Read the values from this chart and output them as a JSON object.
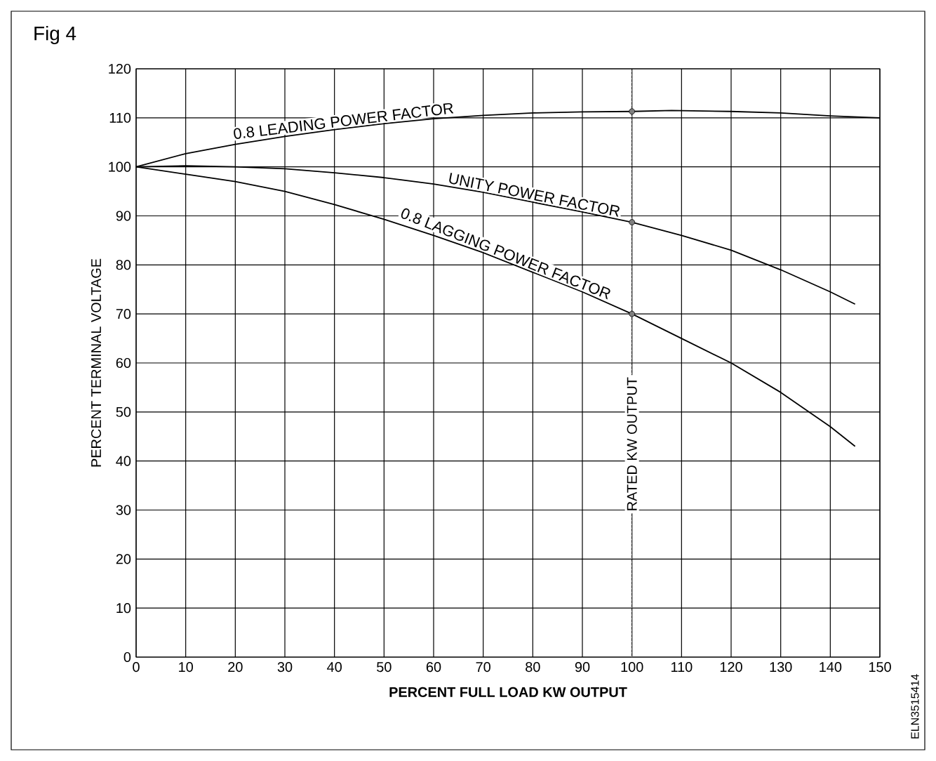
{
  "chart_data": {
    "type": "line",
    "title": "Fig 4",
    "xlabel": "PERCENT FULL LOAD KW OUTPUT",
    "ylabel": "PERCENT TERMINAL VOLTAGE",
    "xlim": [
      0,
      150
    ],
    "ylim": [
      0,
      120
    ],
    "xticks": [
      0,
      10,
      20,
      30,
      40,
      50,
      60,
      70,
      80,
      90,
      100,
      110,
      120,
      130,
      140,
      150
    ],
    "yticks": [
      0,
      10,
      20,
      30,
      40,
      50,
      60,
      70,
      80,
      90,
      100,
      110,
      120
    ],
    "grid": true,
    "line_style": "solid",
    "series": [
      {
        "name": "0.8 LEADING POWER FACTOR",
        "color": "#000000",
        "x": [
          0,
          10,
          20,
          30,
          40,
          50,
          60,
          70,
          80,
          90,
          100,
          108,
          120,
          130,
          140,
          150
        ],
        "values": [
          100,
          102.7,
          104.6,
          106.2,
          107.6,
          108.8,
          109.8,
          110.5,
          111,
          111.2,
          111.3,
          111.5,
          111.3,
          111,
          110.4,
          110
        ]
      },
      {
        "name": "UNITY POWER FACTOR",
        "color": "#000000",
        "x": [
          0,
          10,
          20,
          30,
          40,
          50,
          60,
          70,
          80,
          90,
          100,
          110,
          120,
          130,
          140,
          145
        ],
        "values": [
          100,
          100.2,
          100,
          99.6,
          98.8,
          97.8,
          96.5,
          94.8,
          92.8,
          90.8,
          88.7,
          86,
          83,
          79,
          74.5,
          72
        ]
      },
      {
        "name": "0.8 LAGGING POWER FACTOR",
        "color": "#000000",
        "x": [
          0,
          10,
          20,
          30,
          40,
          50,
          60,
          70,
          80,
          90,
          100,
          110,
          120,
          130,
          140,
          145
        ],
        "values": [
          100,
          98.5,
          97,
          95,
          92.3,
          89.3,
          86,
          82.5,
          78.5,
          74.5,
          70,
          65,
          60,
          54,
          47,
          43
        ]
      },
      {
        "type": "scatter",
        "color": "#000000",
        "x": [
          100,
          100,
          100
        ],
        "values": [
          111.3,
          88.7,
          70
        ]
      }
    ],
    "ref_lines": [
      {
        "axis": "x",
        "value": 100,
        "label": "RATED KW OUTPUT",
        "color": "#808080",
        "line_style": "dotted"
      }
    ],
    "annotations": [
      "ELN3515414"
    ]
  }
}
